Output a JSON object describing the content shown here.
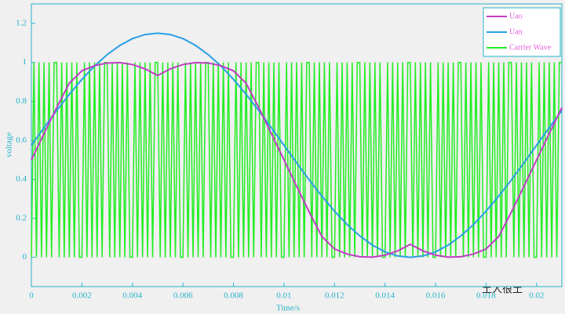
{
  "chart_data": {
    "type": "line",
    "xlabel": "Time/s",
    "ylabel": "voltage",
    "watermark": "土人很土",
    "xlim": [
      0,
      0.021
    ],
    "ylim": [
      -0.15,
      1.3
    ],
    "xticks": [
      0,
      0.002,
      0.004,
      0.006,
      0.008,
      0.01,
      0.012,
      0.014,
      0.016,
      0.018,
      0.02
    ],
    "yticks": [
      0,
      0.2,
      0.4,
      0.6,
      0.8,
      1,
      1.2
    ],
    "legend": "upper right",
    "x": [
      0,
      0.0005,
      0.001,
      0.0015,
      0.002,
      0.0025,
      0.003,
      0.0035,
      0.004,
      0.0045,
      0.005,
      0.0055,
      0.006,
      0.0065,
      0.007,
      0.0075,
      0.008,
      0.0085,
      0.009,
      0.0095,
      0.01,
      0.0105,
      0.011,
      0.0115,
      0.012,
      0.0125,
      0.013,
      0.0135,
      0.014,
      0.0145,
      0.015,
      0.0155,
      0.016,
      0.0165,
      0.017,
      0.0175,
      0.018,
      0.0185,
      0.019,
      0.0195,
      0.02,
      0.0205,
      0.021
    ],
    "series": [
      {
        "name": "Uao",
        "color": "#c23cc6",
        "values": [
          0.5,
          0.635,
          0.768,
          0.893,
          0.957,
          0.983,
          0.997,
          0.999,
          0.989,
          0.967,
          0.933,
          0.967,
          0.989,
          0.999,
          0.997,
          0.983,
          0.957,
          0.893,
          0.768,
          0.635,
          0.5,
          0.365,
          0.232,
          0.107,
          0.043,
          0.017,
          0.003,
          0.001,
          0.011,
          0.033,
          0.067,
          0.033,
          0.011,
          0.001,
          0.003,
          0.017,
          0.043,
          0.107,
          0.232,
          0.365,
          0.5,
          0.635,
          0.768
        ]
      },
      {
        "name": "Uan",
        "color": "#2a9fe6",
        "values": [
          0.575,
          0.665,
          0.753,
          0.836,
          0.913,
          0.982,
          1.04,
          1.087,
          1.122,
          1.143,
          1.15,
          1.143,
          1.122,
          1.087,
          1.04,
          0.982,
          0.913,
          0.836,
          0.753,
          0.665,
          0.575,
          0.485,
          0.397,
          0.314,
          0.237,
          0.168,
          0.11,
          0.063,
          0.028,
          0.007,
          0,
          0.007,
          0.028,
          0.063,
          0.11,
          0.168,
          0.237,
          0.314,
          0.397,
          0.485,
          0.575,
          0.665,
          0.753
        ]
      },
      {
        "name": "Carrier Wave",
        "color": "#22ee22",
        "x": [
          0,
          0.0001,
          0.0002,
          0.0003,
          0.0004,
          0.0005,
          0.0006,
          0.0007,
          0.0008,
          0.0009,
          0.001,
          0.0011,
          0.0012,
          0.0013,
          0.0014,
          0.0015,
          0.0016,
          0.0017,
          0.0018,
          0.0019,
          0.002,
          0.0021,
          0.0022,
          0.0023,
          0.0024,
          0.0025,
          0.0026,
          0.0027,
          0.0028,
          0.0029,
          0.003,
          0.0031,
          0.0032,
          0.0033,
          0.0034,
          0.0035,
          0.0036,
          0.0037,
          0.0038,
          0.0039,
          0.004,
          0.0041,
          0.0042,
          0.0043,
          0.0044,
          0.0045,
          0.0046,
          0.0047,
          0.0048,
          0.0049,
          0.005,
          0.0051,
          0.0052,
          0.0053,
          0.0054,
          0.0055,
          0.0056,
          0.0057,
          0.0058,
          0.0059,
          0.006,
          0.0061,
          0.0062,
          0.0063,
          0.0064,
          0.0065,
          0.0066,
          0.0067,
          0.0068,
          0.0069,
          0.007,
          0.0071,
          0.0072,
          0.0073,
          0.0074,
          0.0075,
          0.0076,
          0.0077,
          0.0078,
          0.0079,
          0.008,
          0.0081,
          0.0082,
          0.0083,
          0.0084,
          0.0085,
          0.0086,
          0.0087,
          0.0088,
          0.0089,
          0.009,
          0.0091,
          0.0092,
          0.0093,
          0.0094,
          0.0095,
          0.0096,
          0.0097,
          0.0098,
          0.0099,
          0.01,
          0.0101,
          0.0102,
          0.0103,
          0.0104,
          0.0105,
          0.0106,
          0.0107,
          0.0108,
          0.0109,
          0.011,
          0.0111,
          0.0112,
          0.0113,
          0.0114,
          0.0115,
          0.0116,
          0.0117,
          0.0118,
          0.0119,
          0.012,
          0.0121,
          0.0122,
          0.0123,
          0.0124,
          0.0125,
          0.0126,
          0.0127,
          0.0128,
          0.0129,
          0.013,
          0.0131,
          0.0132,
          0.0133,
          0.0134,
          0.0135,
          0.0136,
          0.0137,
          0.0138,
          0.0139,
          0.014,
          0.0141,
          0.0142,
          0.0143,
          0.0144,
          0.0145,
          0.0146,
          0.0147,
          0.0148,
          0.0149,
          0.015,
          0.0151,
          0.0152,
          0.0153,
          0.0154,
          0.0155,
          0.0156,
          0.0157,
          0.0158,
          0.0159,
          0.016,
          0.0161,
          0.0162,
          0.0163,
          0.0164,
          0.0165,
          0.0166,
          0.0167,
          0.0168,
          0.0169,
          0.017,
          0.0171,
          0.0172,
          0.0173,
          0.0174,
          0.0175,
          0.0176,
          0.0177,
          0.0178,
          0.0179,
          0.018,
          0.0181,
          0.0182,
          0.0183,
          0.0184,
          0.0185,
          0.0186,
          0.0187,
          0.0188,
          0.0189,
          0.019,
          0.0191,
          0.0192,
          0.0193,
          0.0194,
          0.0195,
          0.0196,
          0.0197,
          0.0198,
          0.0199,
          0.02,
          0.0201,
          0.0202,
          0.0203,
          0.0204,
          0.0205,
          0.0206,
          0.0207,
          0.0208,
          0.0209,
          0.021
        ],
        "values": [
          0,
          1,
          0,
          1,
          0,
          1,
          0,
          1,
          0,
          1,
          1,
          0,
          1,
          0,
          1,
          0,
          1,
          0,
          1,
          0,
          0,
          1,
          0,
          1,
          0,
          1,
          0,
          1,
          0,
          1,
          1,
          0,
          1,
          0,
          1,
          0,
          1,
          0,
          1,
          0,
          0,
          1,
          0,
          1,
          0,
          1,
          0,
          1,
          0,
          1,
          1,
          0,
          1,
          0,
          1,
          0,
          1,
          0,
          1,
          0,
          0,
          1,
          0,
          1,
          0,
          1,
          0,
          1,
          0,
          1,
          1,
          0,
          1,
          0,
          1,
          0,
          1,
          0,
          1,
          0,
          0,
          1,
          0,
          1,
          0,
          1,
          0,
          1,
          0,
          1,
          1,
          0,
          1,
          0,
          1,
          0,
          1,
          0,
          1,
          0,
          0,
          1,
          0,
          1,
          0,
          1,
          0,
          1,
          0,
          1,
          1,
          0,
          1,
          0,
          1,
          0,
          1,
          0,
          1,
          0,
          0,
          1,
          0,
          1,
          0,
          1,
          0,
          1,
          0,
          1,
          1,
          0,
          1,
          0,
          1,
          0,
          1,
          0,
          1,
          0,
          0,
          1,
          0,
          1,
          0,
          1,
          0,
          1,
          0,
          1,
          1,
          0,
          1,
          0,
          1,
          0,
          1,
          0,
          1,
          0,
          0,
          1,
          0,
          1,
          0,
          1,
          0,
          1,
          0,
          1,
          1,
          0,
          1,
          0,
          1,
          0,
          1,
          0,
          1,
          0,
          0,
          1,
          0,
          1,
          0,
          1,
          0,
          1,
          0,
          1,
          1,
          0,
          1,
          0,
          1,
          0,
          1,
          0,
          1,
          0,
          0,
          1,
          0,
          1,
          0,
          1,
          0,
          1,
          0,
          1,
          1
        ]
      }
    ]
  }
}
